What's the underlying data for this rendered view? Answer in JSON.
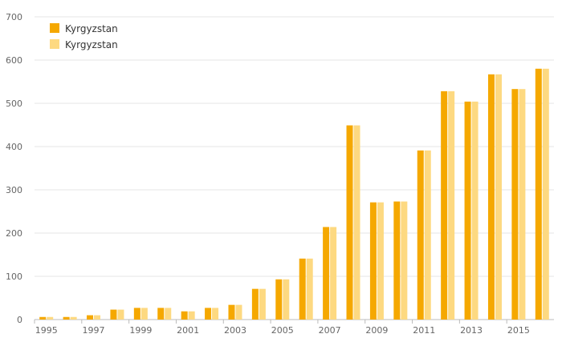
{
  "chart_data": {
    "type": "bar",
    "title": "",
    "xlabel": "",
    "ylabel": "",
    "ylim": [
      0,
      700
    ],
    "yticks": [
      0,
      100,
      200,
      300,
      400,
      500,
      600,
      700
    ],
    "grid": true,
    "legend_position": "top-left",
    "categories": [
      "1995",
      "1996",
      "1997",
      "1998",
      "1999",
      "2000",
      "2001",
      "2002",
      "2003",
      "2004",
      "2005",
      "2006",
      "2007",
      "2008",
      "2009",
      "2010",
      "2011",
      "2012",
      "2013",
      "2014",
      "2015",
      "2016"
    ],
    "xtick_labels": [
      "1995",
      "1997",
      "1999",
      "2001",
      "2003",
      "2005",
      "2007",
      "2009",
      "2011",
      "2013",
      "2015"
    ],
    "series": [
      {
        "name": "Kyrgyzstan",
        "color": "#f5a800",
        "values": [
          6,
          6,
          10,
          23,
          27,
          27,
          19,
          27,
          34,
          71,
          93,
          141,
          214,
          449,
          271,
          273,
          391,
          528,
          504,
          567,
          533,
          580
        ]
      },
      {
        "name": "Kyrgyzstan",
        "color": "#fdd981",
        "values": [
          6,
          6,
          10,
          23,
          27,
          27,
          19,
          27,
          34,
          71,
          93,
          141,
          214,
          449,
          271,
          273,
          391,
          528,
          504,
          567,
          533,
          580
        ]
      }
    ]
  }
}
